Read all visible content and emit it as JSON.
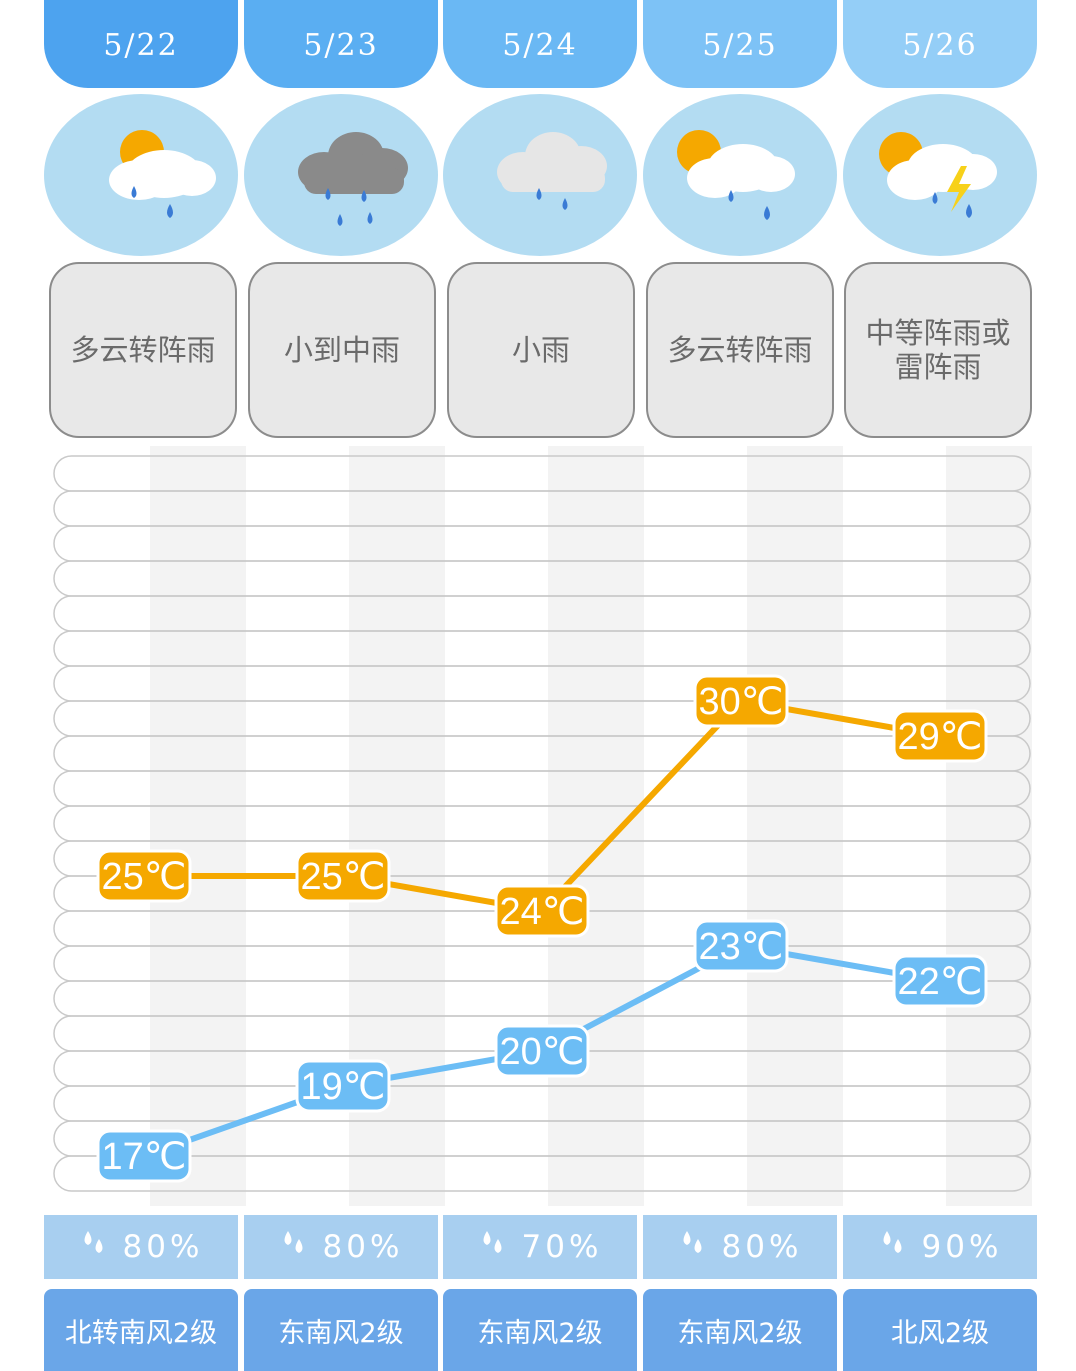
{
  "days": [
    {
      "date": "5/22",
      "condition": "多云转阵雨",
      "icon": "partly-cloudy-rain-icon",
      "rain_chance": "80%",
      "wind": "北转南风2级"
    },
    {
      "date": "5/23",
      "condition": "小到中雨",
      "icon": "dark-cloud-rain-icon",
      "rain_chance": "80%",
      "wind": "东南风2级"
    },
    {
      "date": "5/24",
      "condition": "小雨",
      "icon": "cloud-light-rain-icon",
      "rain_chance": "70%",
      "wind": "东南风2级"
    },
    {
      "date": "5/25",
      "condition": "多云转阵雨",
      "icon": "partly-cloudy-rain-icon",
      "rain_chance": "80%",
      "wind": "东南风2级"
    },
    {
      "date": "5/26",
      "condition": "中等阵雨或雷阵雨",
      "icon": "partly-cloudy-thunder-icon",
      "rain_chance": "90%",
      "wind": "北风2级"
    }
  ],
  "colors": {
    "date_tabs": [
      "#4da3ef",
      "#5aaef2",
      "#6ab8f4",
      "#7dc2f6",
      "#94cef7"
    ],
    "high_line": "#f5a800",
    "low_line": "#6cbdf5",
    "icon_bg": "#b3dcf2",
    "rain_bg": "#a8cff0",
    "wind_bg": "#6aa6e8"
  },
  "chart_data": {
    "type": "line",
    "categories": [
      "5/22",
      "5/23",
      "5/24",
      "5/25",
      "5/26"
    ],
    "series": [
      {
        "values": [
          25,
          25,
          24,
          30,
          29
        ],
        "labels": [
          "25℃",
          "25℃",
          "24℃",
          "30℃",
          "29℃"
        ],
        "color": "#f5a800"
      },
      {
        "values": [
          17,
          19,
          20,
          23,
          22
        ],
        "labels": [
          "17℃",
          "19℃",
          "20℃",
          "23℃",
          "22℃"
        ],
        "color": "#6cbdf5"
      }
    ],
    "ylim": [
      16,
      37
    ],
    "grid": true,
    "legend": "none"
  }
}
